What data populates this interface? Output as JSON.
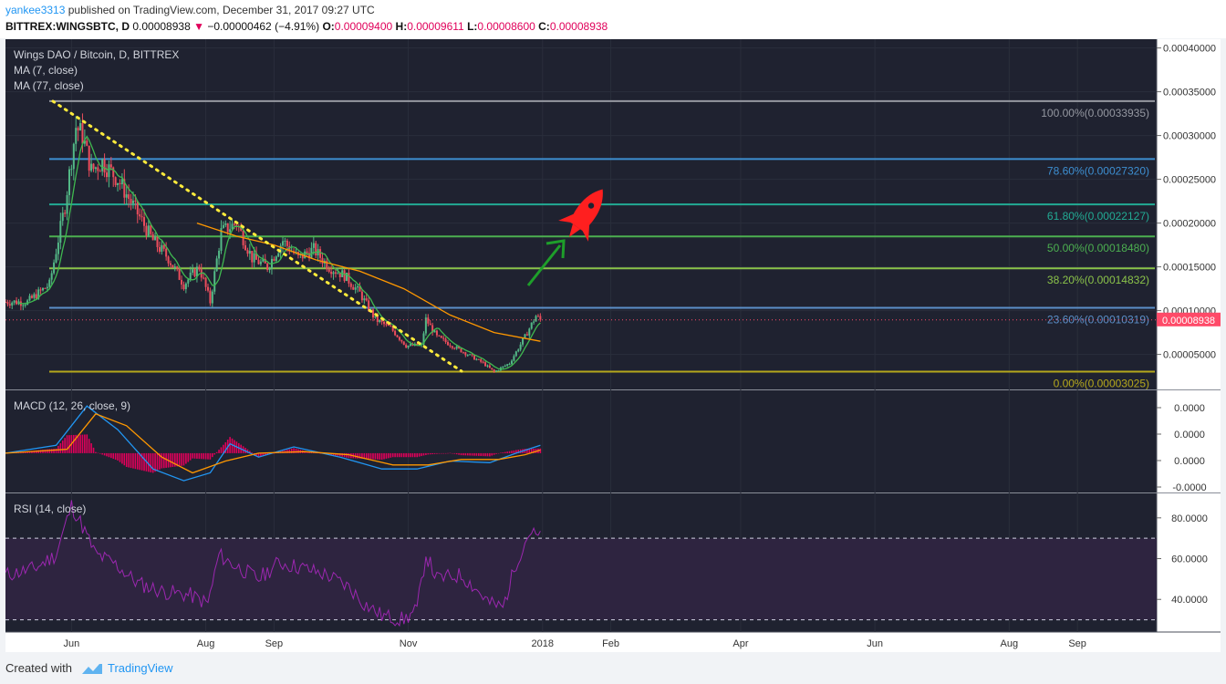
{
  "header": {
    "author": "yankee3313",
    "published_text": "published on TradingView.com, December 31, 2017 09:27 UTC",
    "symbol": "BITTREX:WINGSBTC, D",
    "last": "0.00008938",
    "change": "−0.00000462 (−4.91%)",
    "o_label": "O:",
    "o_value": "0.00009400",
    "h_label": "H:",
    "h_value": "0.00009611",
    "l_label": "L:",
    "l_value": "0.00008600",
    "c_label": "C:",
    "c_value": "0.00008938"
  },
  "footer": {
    "created_with": "Created with",
    "brand": "TradingView"
  },
  "colors": {
    "background": "#1f2230",
    "up": "#53b987",
    "down": "#eb4d5c",
    "ma7": "#3fb950",
    "ma77": "#ff9800",
    "trend": "#ffeb3b",
    "macd": "#2196f3",
    "signal": "#ff9800",
    "hist": "#e0005a",
    "rsi": "#9c27b0",
    "arrow": "#1e9e2a",
    "rocket": "#ff1f1f"
  },
  "chart_data": [
    {
      "type": "candlestick",
      "title": "Wings DAO / Bitcoin, D, BITTREX",
      "indicators": [
        "MA (7, close)",
        "MA (77, close)"
      ],
      "x_ticks": [
        "Jun",
        "Aug",
        "Sep",
        "Nov",
        "2018",
        "Feb",
        "Apr",
        "Jun",
        "Aug",
        "Sep"
      ],
      "y_ticks": [
        "0.00040000",
        "0.00035000",
        "0.00030000",
        "0.00025000",
        "0.00020000",
        "0.00015000",
        "0.00010000",
        "0.00005000"
      ],
      "ylim": [
        1e-05,
        0.00041
      ],
      "x_start": "2017-05-02",
      "x_end": "2018-10-07",
      "last_price_label": "0.00008938",
      "fib_levels": [
        {
          "label": "100.00%(0.00033935)",
          "value": 0.00033935,
          "color": "#9598a1"
        },
        {
          "label": "78.60%(0.00027320)",
          "value": 0.0002732,
          "color": "#3d8fd1"
        },
        {
          "label": "61.80%(0.00022127)",
          "value": 0.00022127,
          "color": "#22ab94"
        },
        {
          "label": "50.00%(0.00018480)",
          "value": 0.0001848,
          "color": "#4caf50"
        },
        {
          "label": "38.20%(0.00014832)",
          "value": 0.00014832,
          "color": "#8bc34a"
        },
        {
          "label": "23.60%(0.00010319)",
          "value": 0.00010319,
          "color": "#5b8fc9"
        },
        {
          "label": "0.00%(0.00003025)",
          "value": 3.025e-05,
          "color": "#b5a81c"
        }
      ],
      "series": [
        {
          "name": "Price",
          "points": [
            [
              "2017-05-02",
              0.00011
            ],
            [
              "2017-05-12",
              0.00011
            ],
            [
              "2017-05-22",
              0.00013
            ],
            [
              "2017-05-29",
              0.00022
            ],
            [
              "2017-06-03",
              0.00031
            ],
            [
              "2017-06-06",
              0.0003
            ],
            [
              "2017-06-10",
              0.00026
            ],
            [
              "2017-06-15",
              0.00027
            ],
            [
              "2017-06-22",
              0.00025
            ],
            [
              "2017-06-29",
              0.00022
            ],
            [
              "2017-07-08",
              0.00018
            ],
            [
              "2017-07-15",
              0.00016
            ],
            [
              "2017-07-22",
              0.00013
            ],
            [
              "2017-07-29",
              0.00015
            ],
            [
              "2017-08-03",
              0.00011
            ],
            [
              "2017-08-08",
              0.00019
            ],
            [
              "2017-08-15",
              0.0002
            ],
            [
              "2017-08-22",
              0.00016
            ],
            [
              "2017-08-29",
              0.00015
            ],
            [
              "2017-09-05",
              0.00018
            ],
            [
              "2017-09-12",
              0.00016
            ],
            [
              "2017-09-19",
              0.00017
            ],
            [
              "2017-09-26",
              0.00015
            ],
            [
              "2017-10-03",
              0.00014
            ],
            [
              "2017-10-10",
              0.00012
            ],
            [
              "2017-10-17",
              9e-05
            ],
            [
              "2017-10-24",
              8e-05
            ],
            [
              "2017-10-31",
              6e-05
            ],
            [
              "2017-11-07",
              6e-05
            ],
            [
              "2017-11-09",
              9e-05
            ],
            [
              "2017-11-14",
              7e-05
            ],
            [
              "2017-11-21",
              6e-05
            ],
            [
              "2017-11-28",
              5e-05
            ],
            [
              "2017-12-05",
              4e-05
            ],
            [
              "2017-12-10",
              3e-05
            ],
            [
              "2017-12-17",
              4e-05
            ],
            [
              "2017-12-24",
              7e-05
            ],
            [
              "2017-12-29",
              9.4e-05
            ],
            [
              "2017-12-31",
              8.938e-05
            ]
          ]
        },
        {
          "name": "MA (77, close)",
          "points": [
            [
              "2017-07-28",
              0.0002
            ],
            [
              "2017-08-15",
              0.000185
            ],
            [
              "2017-09-01",
              0.000175
            ],
            [
              "2017-09-20",
              0.000158
            ],
            [
              "2017-10-10",
              0.000145
            ],
            [
              "2017-10-30",
              0.000125
            ],
            [
              "2017-11-20",
              9.5e-05
            ],
            [
              "2017-12-10",
              7.5e-05
            ],
            [
              "2017-12-31",
              6.5e-05
            ]
          ]
        }
      ]
    },
    {
      "type": "line",
      "title": "MACD (12, 26, close, 9)",
      "y_ticks": [
        "0.0000",
        "0.0000",
        "0.0000",
        "-0.0000"
      ],
      "series": [
        {
          "name": "MACD",
          "points": [
            [
              "2017-05-02",
              0
            ],
            [
              "2017-05-25",
              1e-05
            ],
            [
              "2017-06-08",
              6e-05
            ],
            [
              "2017-06-22",
              3e-05
            ],
            [
              "2017-07-08",
              -2e-05
            ],
            [
              "2017-07-22",
              -3.5e-05
            ],
            [
              "2017-08-03",
              -2.5e-05
            ],
            [
              "2017-08-12",
              1.2e-05
            ],
            [
              "2017-08-25",
              -5e-06
            ],
            [
              "2017-09-10",
              8e-06
            ],
            [
              "2017-10-01",
              -5e-06
            ],
            [
              "2017-10-20",
              -2e-05
            ],
            [
              "2017-11-05",
              -2e-05
            ],
            [
              "2017-11-20",
              -1e-05
            ],
            [
              "2017-12-08",
              -1.2e-05
            ],
            [
              "2017-12-20",
              0.0
            ],
            [
              "2017-12-31",
              1e-05
            ]
          ]
        },
        {
          "name": "Signal",
          "points": [
            [
              "2017-05-02",
              0
            ],
            [
              "2017-05-30",
              5e-06
            ],
            [
              "2017-06-12",
              5e-05
            ],
            [
              "2017-06-26",
              3.5e-05
            ],
            [
              "2017-07-12",
              -5e-06
            ],
            [
              "2017-07-26",
              -2.5e-05
            ],
            [
              "2017-08-10",
              -1e-05
            ],
            [
              "2017-08-25",
              0.0
            ],
            [
              "2017-09-15",
              2e-06
            ],
            [
              "2017-10-05",
              -2e-06
            ],
            [
              "2017-10-25",
              -1.5e-05
            ],
            [
              "2017-11-10",
              -1.5e-05
            ],
            [
              "2017-11-25",
              -8e-06
            ],
            [
              "2017-12-12",
              -8e-06
            ],
            [
              "2017-12-24",
              -2e-06
            ],
            [
              "2017-12-31",
              4e-06
            ]
          ]
        }
      ]
    },
    {
      "type": "line",
      "title": "RSI (14, close)",
      "y_ticks": [
        "80.0000",
        "60.0000",
        "40.0000"
      ],
      "ylim": [
        24,
        92
      ],
      "bands": [
        30,
        70
      ],
      "series": [
        {
          "name": "RSI",
          "points": [
            [
              "2017-05-02",
              52
            ],
            [
              "2017-05-15",
              55
            ],
            [
              "2017-05-25",
              62
            ],
            [
              "2017-06-01",
              86
            ],
            [
              "2017-06-05",
              78
            ],
            [
              "2017-06-12",
              62
            ],
            [
              "2017-06-20",
              58
            ],
            [
              "2017-07-01",
              48
            ],
            [
              "2017-07-12",
              44
            ],
            [
              "2017-07-25",
              42
            ],
            [
              "2017-08-02",
              38
            ],
            [
              "2017-08-07",
              62
            ],
            [
              "2017-08-12",
              58
            ],
            [
              "2017-08-25",
              50
            ],
            [
              "2017-09-03",
              58
            ],
            [
              "2017-09-12",
              56
            ],
            [
              "2017-09-25",
              52
            ],
            [
              "2017-10-05",
              46
            ],
            [
              "2017-10-12",
              38
            ],
            [
              "2017-10-20",
              32
            ],
            [
              "2017-10-30",
              30
            ],
            [
              "2017-11-05",
              35
            ],
            [
              "2017-11-09",
              62
            ],
            [
              "2017-11-14",
              50
            ],
            [
              "2017-11-25",
              52
            ],
            [
              "2017-12-01",
              46
            ],
            [
              "2017-12-08",
              38
            ],
            [
              "2017-12-14",
              36
            ],
            [
              "2017-12-20",
              58
            ],
            [
              "2017-12-26",
              73
            ],
            [
              "2017-12-31",
              70
            ]
          ]
        }
      ]
    }
  ]
}
